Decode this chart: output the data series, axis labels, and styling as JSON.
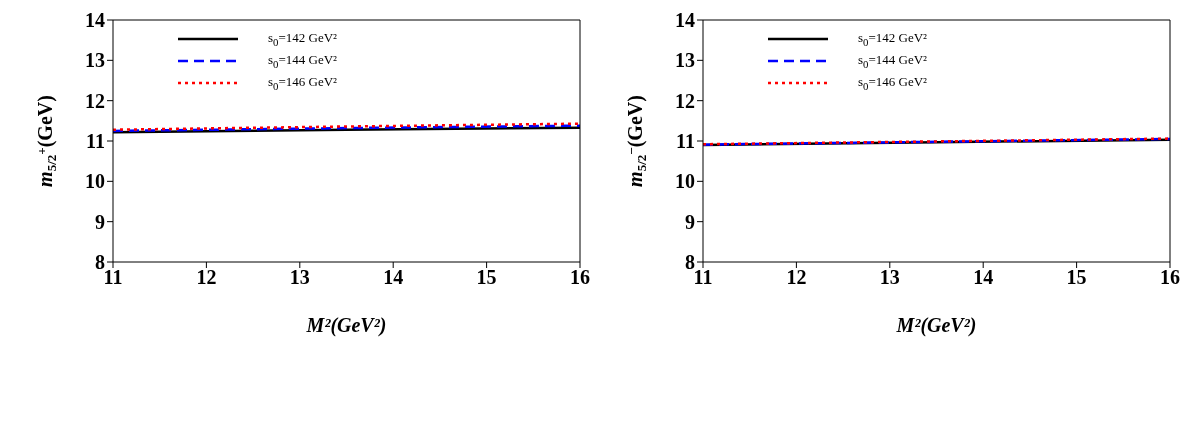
{
  "chart_data": [
    {
      "type": "line",
      "xlabel": "M²(GeV²)",
      "ylabel": "m$_{5/2}$$^{+}$(GeV)",
      "xlim": [
        11,
        16
      ],
      "xticks": [
        11,
        12,
        13,
        14,
        15,
        16
      ],
      "ylim": [
        8,
        14
      ],
      "yticks": [
        8,
        9,
        10,
        11,
        12,
        13,
        14
      ],
      "legend": "top left",
      "series": [
        {
          "name": "s$_{0}$=142 GeV²",
          "color": "#000000",
          "line_style": "solid",
          "x": [
            11,
            13.5,
            16
          ],
          "values": [
            11.22,
            11.28,
            11.33
          ]
        },
        {
          "name": "s$_{0}$=144 GeV²",
          "color": "#0000ff",
          "line_style": "dashed",
          "x": [
            11,
            13.5,
            16
          ],
          "values": [
            11.25,
            11.32,
            11.38
          ]
        },
        {
          "name": "s$_{0}$=146 GeV²",
          "color": "#ff0000",
          "line_style": "dotted",
          "x": [
            11,
            13.5,
            16
          ],
          "values": [
            11.28,
            11.36,
            11.43
          ]
        }
      ]
    },
    {
      "type": "line",
      "xlabel": "M²(GeV²)",
      "ylabel": "m$_{5/2}$$^{−}$(GeV)",
      "xlim": [
        11,
        16
      ],
      "xticks": [
        11,
        12,
        13,
        14,
        15,
        16
      ],
      "ylim": [
        8,
        14
      ],
      "yticks": [
        8,
        9,
        10,
        11,
        12,
        13,
        14
      ],
      "legend": "top left",
      "series": [
        {
          "name": "s$_{0}$=142 GeV²",
          "color": "#000000",
          "line_style": "solid",
          "x": [
            11,
            13.5,
            16
          ],
          "values": [
            10.9,
            10.97,
            11.03
          ]
        },
        {
          "name": "s$_{0}$=144 GeV²",
          "color": "#0000ff",
          "line_style": "dashed",
          "x": [
            11,
            13.5,
            16
          ],
          "values": [
            10.91,
            10.98,
            11.05
          ]
        },
        {
          "name": "s$_{0}$=146 GeV²",
          "color": "#ff0000",
          "line_style": "dotted",
          "x": [
            11,
            13.5,
            16
          ],
          "values": [
            10.92,
            10.99,
            11.06
          ]
        }
      ]
    }
  ]
}
